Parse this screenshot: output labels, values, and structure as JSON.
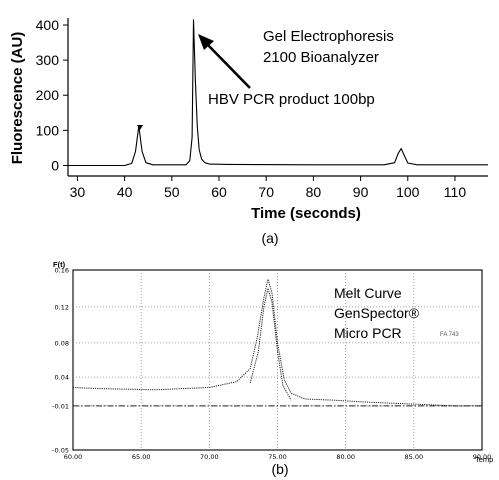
{
  "chart_data": [
    {
      "type": "line",
      "panel_label": "(a)",
      "xlabel": "Time (seconds)",
      "ylabel": "Fluorescence (AU)",
      "xlim": [
        28,
        117
      ],
      "ylim": [
        -30,
        420
      ],
      "xticks": [
        "30",
        "40",
        "50",
        "60",
        "70",
        "80",
        "90",
        "100",
        "110"
      ],
      "yticks": [
        "0",
        "100",
        "200",
        "300",
        "400"
      ],
      "grid": false,
      "annotations": [
        "Gel Electrophoresis",
        "2100 Bioanalyzer",
        "HBV PCR product 100bp"
      ],
      "series": [
        {
          "x": [
            28,
            40,
            41.5,
            42.3,
            43,
            43.7,
            44.5,
            46,
            53,
            53.8,
            54.3,
            54.6,
            55,
            55.4,
            55.8,
            56.3,
            57,
            58,
            62,
            80,
            95,
            97.2,
            98,
            98.6,
            99.2,
            100,
            102,
            117
          ],
          "y": [
            0,
            0,
            6,
            40,
            112,
            40,
            8,
            2,
            2,
            14,
            80,
            415,
            240,
            110,
            45,
            18,
            8,
            4,
            3,
            2,
            2,
            8,
            35,
            48,
            30,
            7,
            2,
            2
          ]
        }
      ]
    },
    {
      "type": "line",
      "panel_label": "(b)",
      "title_lines": [
        "Melt Curve",
        "GenSpector®",
        "Micro PCR"
      ],
      "ylabel": "F(t)",
      "xlabel": "Temp",
      "xlim": [
        60,
        90
      ],
      "ylim": [
        -0.05,
        0.16
      ],
      "xticks": [
        "60.00",
        "65.00",
        "70.00",
        "75.00",
        "80.00",
        "85.00",
        "90.00"
      ],
      "yticks": [
        "0.16",
        "0.12",
        "0.08",
        "0.04",
        "-0.01",
        "-0.05"
      ],
      "ytick_values": [
        0.16,
        0.12,
        0.08,
        0.04,
        -0.01,
        -0.05
      ],
      "grid": true,
      "small_label": "FA 743",
      "series": [
        {
          "style": "dashdot",
          "x": [
            60,
            90
          ],
          "y": [
            -0.01,
            -0.01
          ]
        },
        {
          "style": "dotted",
          "x": [
            60,
            62,
            66,
            70,
            72,
            73,
            73.5,
            74,
            74.3,
            74.6,
            75,
            75.5,
            76,
            77,
            79,
            82,
            86,
            88,
            90
          ],
          "y": [
            0.022,
            0.02,
            0.018,
            0.022,
            0.032,
            0.05,
            0.085,
            0.13,
            0.15,
            0.135,
            0.08,
            0.035,
            0.012,
            0.002,
            0.0,
            -0.004,
            -0.008,
            -0.01,
            -0.01
          ]
        },
        {
          "style": "dotted",
          "x": [
            73,
            73.6,
            74,
            74.3,
            74.6,
            75,
            75.4,
            76
          ],
          "y": [
            0.03,
            0.07,
            0.12,
            0.14,
            0.125,
            0.07,
            0.025,
            0.0
          ]
        }
      ]
    }
  ]
}
